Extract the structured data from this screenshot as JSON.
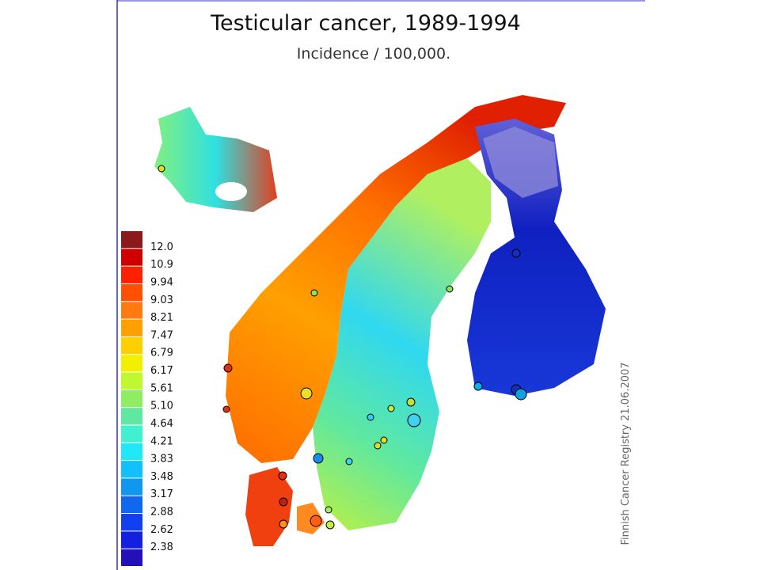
{
  "header": {
    "title": "Testicular cancer, 1989-1994",
    "subtitle": "Incidence / 100,000."
  },
  "legend": {
    "items": [
      {
        "color": "#8b1a1a",
        "label": "12.0"
      },
      {
        "color": "#d00000",
        "label": "10.9"
      },
      {
        "color": "#ff2000",
        "label": "9.94"
      },
      {
        "color": "#ff5000",
        "label": "9.03"
      },
      {
        "color": "#ff7a10",
        "label": "8.21"
      },
      {
        "color": "#ffa000",
        "label": "7.47"
      },
      {
        "color": "#ffd000",
        "label": "6.79"
      },
      {
        "color": "#f0f000",
        "label": "6.17"
      },
      {
        "color": "#c0f830",
        "label": "5.61"
      },
      {
        "color": "#90ec60",
        "label": "5.10"
      },
      {
        "color": "#60e8a0",
        "label": "4.64"
      },
      {
        "color": "#40f0d0",
        "label": "4.21"
      },
      {
        "color": "#20e8f8",
        "label": "3.83"
      },
      {
        "color": "#10c0ff",
        "label": "3.48"
      },
      {
        "color": "#1098f0",
        "label": "3.17"
      },
      {
        "color": "#1068f0",
        "label": "2.88"
      },
      {
        "color": "#1040f0",
        "label": "2.62"
      },
      {
        "color": "#1420e0",
        "label": "2.38"
      },
      {
        "color": "#2410b8"
      }
    ]
  },
  "credit": "Finnish Cancer Registry 21.06.2007"
}
